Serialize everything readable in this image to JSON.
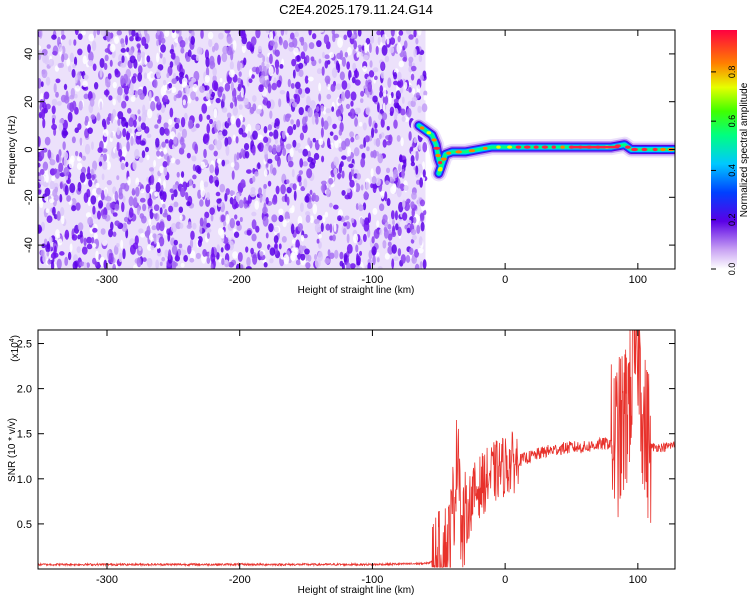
{
  "title": "C2E4.2025.179.11.24.G14",
  "chart_data": [
    {
      "type": "heatmap",
      "xlabel": "Height of straight line (km)",
      "ylabel": "Frequency (Hz)",
      "xlim": [
        -352,
        128
      ],
      "ylim": [
        -50,
        50
      ],
      "x_ticks": [
        -300,
        -200,
        -100,
        0,
        100
      ],
      "y_ticks": [
        -40,
        -20,
        0,
        20,
        40
      ],
      "noise_region_x": [
        -352,
        -60
      ],
      "signal_track": [
        {
          "x": -65,
          "y": 10
        },
        {
          "x": -60,
          "y": 8
        },
        {
          "x": -55,
          "y": 6
        },
        {
          "x": -52,
          "y": 2
        },
        {
          "x": -50,
          "y": -4
        },
        {
          "x": -48,
          "y": -7
        },
        {
          "x": -50,
          "y": -10
        },
        {
          "x": -45,
          "y": -2
        },
        {
          "x": -40,
          "y": -1
        },
        {
          "x": -30,
          "y": -1
        },
        {
          "x": -20,
          "y": 0
        },
        {
          "x": -10,
          "y": 1
        },
        {
          "x": 0,
          "y": 1
        },
        {
          "x": 20,
          "y": 1
        },
        {
          "x": 40,
          "y": 1
        },
        {
          "x": 60,
          "y": 1
        },
        {
          "x": 80,
          "y": 1
        },
        {
          "x": 90,
          "y": 2
        },
        {
          "x": 95,
          "y": 0
        },
        {
          "x": 100,
          "y": 0
        },
        {
          "x": 110,
          "y": 0
        },
        {
          "x": 128,
          "y": 0
        }
      ],
      "colorbar": {
        "label": "Normalized spectral amplitude",
        "ticks": [
          "0.0",
          "0.2",
          "0.4",
          "0.6",
          "0.8"
        ],
        "range": [
          0,
          0.97
        ]
      }
    },
    {
      "type": "line",
      "xlabel": "Height of straight line (km)",
      "ylabel": "SNR (10 * v/v)",
      "y_multiplier": "(x10",
      "y_multiplier_exp": "4",
      "y_multiplier_close": ")",
      "xlim": [
        -352,
        128
      ],
      "ylim": [
        0,
        2.65
      ],
      "x_ticks": [
        -300,
        -200,
        -100,
        0,
        100
      ],
      "y_ticks": [
        "0.5",
        "1.0",
        "1.5",
        "2.0",
        "2.5"
      ],
      "color": "#e8312b",
      "series": [
        {
          "x": [
            -352,
            -100,
            -60,
            -50,
            -42,
            -38,
            -35,
            -33,
            -30,
            -25,
            -20,
            -10,
            0,
            10,
            20,
            30,
            40,
            50,
            60,
            70,
            80,
            85,
            90,
            95,
            100,
            105,
            110,
            120,
            128
          ],
          "y": [
            0.05,
            0.05,
            0.06,
            0.1,
            0.3,
            0.85,
            1.55,
            0.3,
            0.55,
            0.8,
            0.9,
            1.05,
            1.15,
            1.2,
            1.25,
            1.3,
            1.33,
            1.35,
            1.35,
            1.38,
            1.4,
            1.45,
            1.6,
            2.1,
            2.6,
            1.5,
            1.35,
            1.35,
            1.38
          ]
        }
      ]
    }
  ]
}
